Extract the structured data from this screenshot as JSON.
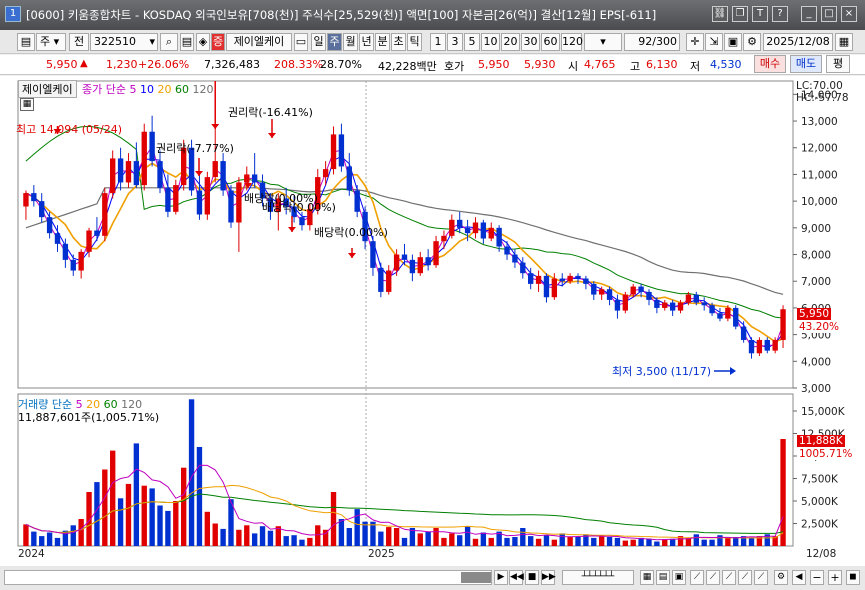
{
  "window": {
    "icon": "1",
    "title": "[0600] 키움종합차트 - KOSDAQ 외국인보유[708(천)] 주식수[25,529(천)] 액면[100] 자본금[26(억)] 결산[12월] EPS[-611]"
  },
  "toolbar": {
    "mode": "주",
    "tab_prev": "전",
    "code": "322510",
    "name": "제이엘케이",
    "periods": [
      "일",
      "주",
      "월",
      "년",
      "분",
      "초",
      "틱"
    ],
    "active_period": "주",
    "nums": [
      "1",
      "3",
      "5",
      "10",
      "20",
      "30",
      "60",
      "120"
    ],
    "count": "92",
    "total": "/300",
    "date": "2025/12/08"
  },
  "quote": {
    "price": "5,950",
    "up_arrow": "▲",
    "change": "1,230",
    "change_pct": "+26.06%",
    "volume": "7,326,483",
    "vol_pct": "208.33%",
    "turnover": "28.70%",
    "amount": "42,228백만",
    "ask_label": "호가",
    "bid": "5,950",
    "ask": "5,930",
    "open_label": "시",
    "open": "4,765",
    "high_label": "고",
    "high": "6,130",
    "low_label": "저",
    "low": "4,530",
    "buy": "매수",
    "sell": "매도",
    "eval": "평"
  },
  "price_panel": {
    "stock_label": "제이엘케이",
    "legend": [
      "종가 단순",
      "5",
      "10",
      "20",
      "60",
      "120"
    ],
    "lc": "LC:70.00",
    "hc": "HC:-57.78",
    "annotations": {
      "high": "최고 14,094 (05/24)",
      "rights1": "권리락(-7.77%)",
      "rights2": "권리락(-16.41%)",
      "div1": "배당락(0.00%)",
      "div2": "배당락(0.00%)",
      "div3": "배당락(0.00%)",
      "low": "최저 3,500 (11/17)"
    },
    "price_tag": "5,950",
    "pct_tag": "43.20%",
    "yticks": [
      "14,000",
      "13,000",
      "12,000",
      "11,000",
      "10,000",
      "9,000",
      "8,000",
      "7,000",
      "6,000",
      "5,000",
      "4,000",
      "3,000"
    ]
  },
  "volume_panel": {
    "legend": [
      "거래량",
      "단순",
      "5",
      "20",
      "60",
      "120"
    ],
    "value_line": "11,887,601주(1,005.71%)",
    "vol_tag": "11,888K",
    "pct_tag": "1005.71%",
    "yticks": [
      "15,000K",
      "12,500K",
      "10,000K",
      "7,500K",
      "5,000K",
      "2,500K"
    ]
  },
  "xaxis": {
    "labels": [
      "2024",
      "2025"
    ],
    "right": "12/08"
  },
  "colors": {
    "up": "#e00000",
    "down": "#0030d0",
    "ma5": "#c000c0",
    "ma10": "#0000ff",
    "ma20": "#f0a000",
    "ma60": "#008000",
    "ma120": "#707070"
  },
  "chart_data": {
    "type": "candlestick",
    "candles": [
      [
        9.8,
        10.4,
        9.3,
        10.3
      ],
      [
        10.3,
        10.6,
        9.8,
        10.0
      ],
      [
        10.0,
        10.3,
        9.2,
        9.4
      ],
      [
        9.4,
        9.6,
        8.6,
        8.8
      ],
      [
        8.8,
        9.1,
        8.1,
        8.4
      ],
      [
        8.4,
        8.6,
        7.5,
        7.8
      ],
      [
        7.8,
        8.0,
        7.2,
        7.4
      ],
      [
        7.4,
        8.2,
        7.1,
        8.1
      ],
      [
        8.1,
        9.0,
        7.9,
        8.9
      ],
      [
        8.9,
        9.4,
        8.5,
        8.7
      ],
      [
        8.7,
        10.5,
        8.5,
        10.3
      ],
      [
        10.3,
        11.9,
        10.1,
        11.6
      ],
      [
        11.6,
        12.0,
        10.4,
        10.7
      ],
      [
        10.7,
        11.8,
        10.5,
        11.5
      ],
      [
        11.5,
        12.2,
        10.5,
        10.6
      ],
      [
        10.6,
        12.9,
        10.4,
        12.6
      ],
      [
        12.6,
        13.2,
        11.3,
        11.5
      ],
      [
        11.5,
        11.9,
        10.3,
        10.5
      ],
      [
        10.5,
        11.0,
        9.4,
        9.6
      ],
      [
        9.6,
        10.8,
        9.5,
        10.6
      ],
      [
        10.6,
        12.3,
        10.4,
        12.0
      ],
      [
        12.0,
        12.3,
        10.2,
        10.4
      ],
      [
        10.4,
        11.0,
        9.3,
        9.5
      ],
      [
        9.5,
        11.1,
        9.3,
        10.9
      ],
      [
        10.9,
        14.1,
        10.7,
        11.5
      ],
      [
        11.5,
        11.8,
        10.2,
        10.4
      ],
      [
        10.4,
        10.6,
        9.0,
        9.2
      ],
      [
        9.2,
        10.9,
        8.1,
        10.7
      ],
      [
        10.7,
        11.3,
        10.4,
        11.0
      ],
      [
        11.0,
        11.8,
        10.5,
        10.7
      ],
      [
        10.7,
        11.0,
        9.8,
        10.1
      ],
      [
        10.1,
        10.3,
        9.3,
        9.6
      ],
      [
        9.6,
        10.3,
        8.9,
        10.1
      ],
      [
        10.1,
        10.5,
        9.5,
        9.8
      ],
      [
        9.8,
        10.2,
        9.2,
        9.4
      ],
      [
        9.4,
        9.6,
        8.9,
        9.1
      ],
      [
        9.1,
        9.9,
        8.9,
        9.7
      ],
      [
        9.7,
        11.2,
        9.5,
        10.9
      ],
      [
        10.9,
        11.5,
        10.6,
        11.2
      ],
      [
        11.2,
        12.8,
        11.0,
        12.5
      ],
      [
        12.5,
        12.9,
        11.1,
        11.3
      ],
      [
        11.3,
        11.8,
        10.2,
        10.4
      ],
      [
        10.4,
        10.6,
        9.4,
        9.6
      ],
      [
        9.6,
        9.8,
        8.2,
        8.5
      ],
      [
        8.5,
        8.7,
        7.2,
        7.5
      ],
      [
        7.5,
        7.7,
        6.4,
        6.6
      ],
      [
        6.6,
        7.6,
        6.5,
        7.4
      ],
      [
        7.4,
        8.2,
        7.2,
        8.0
      ],
      [
        8.0,
        8.4,
        7.6,
        7.8
      ],
      [
        7.8,
        8.0,
        7.0,
        7.3
      ],
      [
        7.3,
        8.1,
        7.2,
        7.9
      ],
      [
        7.9,
        8.2,
        7.4,
        7.6
      ],
      [
        7.6,
        8.7,
        7.5,
        8.5
      ],
      [
        8.5,
        8.9,
        8.2,
        8.7
      ],
      [
        8.7,
        9.5,
        8.6,
        9.3
      ],
      [
        9.3,
        9.6,
        8.8,
        9.0
      ],
      [
        9.0,
        9.3,
        8.5,
        8.8
      ],
      [
        8.8,
        9.4,
        8.6,
        9.2
      ],
      [
        9.2,
        9.3,
        8.4,
        8.6
      ],
      [
        8.6,
        9.2,
        8.5,
        9.0
      ],
      [
        9.0,
        9.1,
        8.1,
        8.3
      ],
      [
        8.3,
        8.5,
        7.8,
        8.0
      ],
      [
        8.0,
        8.2,
        7.5,
        7.7
      ],
      [
        7.7,
        7.9,
        7.1,
        7.3
      ],
      [
        7.3,
        7.5,
        6.7,
        6.9
      ],
      [
        6.9,
        7.4,
        6.6,
        7.2
      ],
      [
        7.2,
        7.3,
        6.2,
        6.4
      ],
      [
        6.4,
        7.3,
        6.3,
        7.1
      ],
      [
        7.1,
        7.3,
        6.8,
        7.0
      ],
      [
        7.0,
        7.3,
        6.9,
        7.2
      ],
      [
        7.2,
        7.3,
        6.9,
        7.1
      ],
      [
        7.1,
        7.2,
        6.7,
        6.9
      ],
      [
        6.9,
        7.0,
        6.3,
        6.5
      ],
      [
        6.5,
        6.8,
        6.3,
        6.7
      ],
      [
        6.7,
        6.8,
        6.1,
        6.3
      ],
      [
        6.3,
        6.5,
        5.6,
        5.9
      ],
      [
        5.9,
        6.6,
        5.8,
        6.5
      ],
      [
        6.5,
        6.9,
        6.4,
        6.8
      ],
      [
        6.8,
        6.9,
        6.4,
        6.6
      ],
      [
        6.6,
        6.7,
        6.1,
        6.3
      ],
      [
        6.3,
        6.4,
        5.8,
        6.0
      ],
      [
        6.0,
        6.3,
        5.9,
        6.2
      ],
      [
        6.2,
        6.3,
        5.7,
        5.9
      ],
      [
        5.9,
        6.3,
        5.8,
        6.2
      ],
      [
        6.2,
        6.6,
        6.1,
        6.5
      ],
      [
        6.5,
        6.6,
        6.1,
        6.2
      ],
      [
        6.2,
        6.4,
        5.9,
        6.1
      ],
      [
        6.1,
        6.2,
        5.7,
        5.8
      ],
      [
        5.8,
        6.0,
        5.5,
        5.6
      ],
      [
        5.6,
        6.1,
        5.5,
        6.0
      ],
      [
        6.0,
        6.1,
        5.2,
        5.3
      ],
      [
        5.3,
        5.5,
        4.7,
        4.8
      ],
      [
        4.8,
        4.9,
        4.1,
        4.3
      ],
      [
        4.3,
        4.9,
        4.2,
        4.8
      ],
      [
        4.8,
        4.9,
        4.3,
        4.4
      ],
      [
        4.4,
        4.9,
        4.3,
        4.8
      ],
      [
        4.8,
        6.1,
        4.5,
        5.95
      ]
    ],
    "volume_k": [
      2400,
      1600,
      1100,
      1500,
      900,
      1700,
      2300,
      3000,
      6000,
      7100,
      8500,
      10600,
      5300,
      6900,
      11400,
      6700,
      6400,
      4500,
      3900,
      5000,
      8700,
      16300,
      11000,
      3800,
      2500,
      1900,
      5200,
      1800,
      2300,
      1400,
      2200,
      1700,
      2200,
      1100,
      1200,
      700,
      900,
      2300,
      1800,
      6000,
      3000,
      2000,
      4100,
      2700,
      2700,
      1600,
      2100,
      2000,
      900,
      2000,
      1400,
      1600,
      2000,
      900,
      1400,
      1200,
      2200,
      800,
      1500,
      900,
      1600,
      900,
      1000,
      2000,
      1100,
      800,
      1200,
      700,
      1400,
      1000,
      1000,
      1300,
      900,
      1200,
      1000,
      900,
      600,
      700,
      900,
      800,
      500,
      700,
      800,
      1100,
      900,
      1300,
      700,
      700,
      1200,
      900,
      1000,
      1100,
      900,
      1100,
      1300,
      1100,
      11888
    ],
    "ylim": [
      3000,
      14500
    ],
    "vol_ylim": [
      0,
      16000
    ]
  }
}
